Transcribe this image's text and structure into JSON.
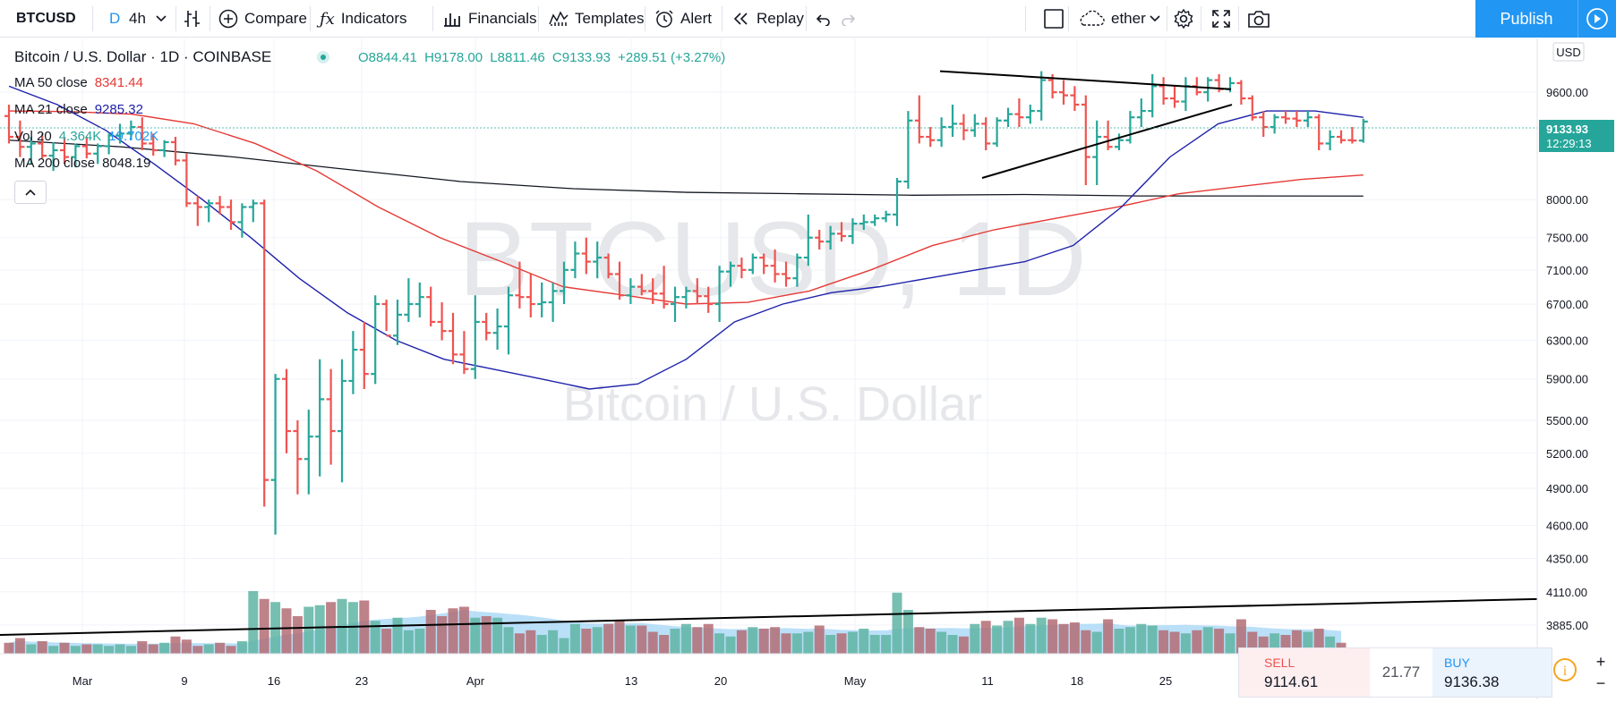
{
  "toolbar": {
    "symbol": "BTCUSD",
    "interval_d": "D",
    "interval_4h": "4h",
    "compare": "Compare",
    "indicators": "Indicators",
    "financials": "Financials",
    "templates": "Templates",
    "alert": "Alert",
    "replay": "Replay",
    "layout_name": "ether",
    "publish": "Publish"
  },
  "legend": {
    "title": "Bitcoin / U.S. Dollar · 1D · COINBASE",
    "open": "O8844.41",
    "high": "H9178.00",
    "low": "L8811.46",
    "close": "C9133.93",
    "change": "+289.51 (+3.27%)",
    "ma50_label": "MA 50 close",
    "ma50_value": "8341.44",
    "ma21_label": "MA 21 close",
    "ma21_value": "9285.32",
    "vol_label": "Vol 20",
    "vol_value1": "4.364K",
    "vol_value2": "19.702K",
    "ma200_label": "MA 200 close",
    "ma200_value": "8048.19"
  },
  "watermark": {
    "symbol": "BTCUSD, 1D",
    "name": "Bitcoin / U.S. Dollar"
  },
  "price_axis": {
    "currency": "USD",
    "ticks": [
      "9600.00",
      "8000.00",
      "7500.00",
      "7100.00",
      "6700.00",
      "6300.00",
      "5900.00",
      "5500.00",
      "5200.00",
      "4900.00",
      "4600.00",
      "4350.00",
      "4110.00",
      "3885.00"
    ],
    "last_price": "9133.93",
    "countdown": "12:29:13"
  },
  "time_axis": {
    "ticks": [
      "Mar",
      "9",
      "16",
      "23",
      "Apr",
      "13",
      "20",
      "May",
      "11",
      "18",
      "25"
    ]
  },
  "trade": {
    "sell_label": "SELL",
    "sell_value": "9114.61",
    "spread": "21.77",
    "buy_label": "BUY",
    "buy_value": "9136.38"
  },
  "colors": {
    "up": "#26a69a",
    "down": "#ef5350",
    "accent": "#2196f3",
    "ma50": "#e53935",
    "ma21": "#1e22aa",
    "ma200": "#131722"
  },
  "chart_data": {
    "type": "ohlc",
    "bars": [
      [
        9220,
        9400,
        8800,
        8900
      ],
      [
        8900,
        9150,
        8600,
        8750
      ],
      [
        8750,
        8900,
        8500,
        8800
      ],
      [
        8800,
        8950,
        8580,
        8620
      ],
      [
        8620,
        8820,
        8400,
        8700
      ],
      [
        8700,
        8880,
        8500,
        8600
      ],
      [
        8600,
        8800,
        8450,
        8760
      ],
      [
        8760,
        8900,
        8580,
        8650
      ],
      [
        8650,
        8800,
        8500,
        8760
      ],
      [
        8760,
        8950,
        8640,
        8920
      ],
      [
        8920,
        9100,
        8800,
        8950
      ],
      [
        8950,
        9150,
        8850,
        9050
      ],
      [
        9050,
        9200,
        8700,
        8800
      ],
      [
        8800,
        8950,
        8620,
        8700
      ],
      [
        8700,
        8850,
        8600,
        8820
      ],
      [
        8820,
        8900,
        8480,
        8550
      ],
      [
        8550,
        8650,
        7900,
        7950
      ],
      [
        7950,
        8050,
        7650,
        7900
      ],
      [
        7900,
        8000,
        7700,
        7950
      ],
      [
        7950,
        8050,
        7800,
        7900
      ],
      [
        7900,
        8000,
        7600,
        7700
      ],
      [
        7700,
        7950,
        7500,
        7900
      ],
      [
        7900,
        8000,
        7700,
        7950
      ],
      [
        7950,
        8000,
        4750,
        4970
      ],
      [
        4970,
        5950,
        4530,
        5900
      ],
      [
        5900,
        6000,
        5200,
        5400
      ],
      [
        5400,
        5500,
        4850,
        5150
      ],
      [
        5150,
        5600,
        4850,
        5350
      ],
      [
        5350,
        6100,
        5000,
        5700
      ],
      [
        5700,
        6000,
        5100,
        5400
      ],
      [
        5400,
        6100,
        4950,
        5880
      ],
      [
        5880,
        6400,
        5750,
        6200
      ],
      [
        6200,
        6500,
        5800,
        5950
      ],
      [
        5950,
        6800,
        5850,
        6700
      ],
      [
        6700,
        6750,
        6400,
        6350
      ],
      [
        6350,
        6750,
        6250,
        6580
      ],
      [
        6580,
        7000,
        6500,
        6700
      ],
      [
        6700,
        6950,
        6550,
        6780
      ],
      [
        6780,
        6900,
        6450,
        6500
      ],
      [
        6500,
        6720,
        6300,
        6400
      ],
      [
        6400,
        6600,
        6050,
        6150
      ],
      [
        6150,
        6400,
        5950,
        6000
      ],
      [
        6000,
        6800,
        5900,
        6500
      ],
      [
        6500,
        6600,
        6300,
        6380
      ],
      [
        6380,
        6650,
        6200,
        6450
      ],
      [
        6450,
        6900,
        6150,
        6800
      ],
      [
        6800,
        7200,
        6650,
        6780
      ],
      [
        6780,
        7050,
        6550,
        6700
      ],
      [
        6700,
        6950,
        6550,
        6720
      ],
      [
        6720,
        6950,
        6500,
        6850
      ],
      [
        6850,
        7200,
        6700,
        7100
      ],
      [
        7100,
        7450,
        7000,
        7300
      ],
      [
        7300,
        7500,
        7050,
        7200
      ],
      [
        7200,
        7450,
        7000,
        7250
      ],
      [
        7250,
        7300,
        7000,
        7050
      ],
      [
        7050,
        7200,
        6750,
        6800
      ],
      [
        6800,
        7000,
        6700,
        6900
      ],
      [
        6900,
        7050,
        6800,
        6850
      ],
      [
        6850,
        7000,
        6700,
        6820
      ],
      [
        6820,
        7150,
        6650,
        6700
      ],
      [
        6700,
        6900,
        6500,
        6780
      ],
      [
        6780,
        6900,
        6650,
        6850
      ],
      [
        6850,
        7000,
        6700,
        6790
      ],
      [
        6790,
        6900,
        6600,
        6700
      ],
      [
        6700,
        7150,
        6500,
        7080
      ],
      [
        7080,
        7200,
        6900,
        7150
      ],
      [
        7150,
        7250,
        7000,
        7100
      ],
      [
        7100,
        7300,
        7050,
        7250
      ],
      [
        7250,
        7300,
        7050,
        7150
      ],
      [
        7150,
        7350,
        6950,
        7050
      ],
      [
        7050,
        7200,
        6900,
        7000
      ],
      [
        7000,
        7300,
        6900,
        7250
      ],
      [
        7250,
        7800,
        7150,
        7500
      ],
      [
        7500,
        7600,
        7350,
        7450
      ],
      [
        7450,
        7650,
        7350,
        7550
      ],
      [
        7550,
        7700,
        7450,
        7520
      ],
      [
        7520,
        7750,
        7420,
        7680
      ],
      [
        7680,
        7800,
        7600,
        7700
      ],
      [
        7700,
        7800,
        7650,
        7750
      ],
      [
        7750,
        7850,
        7700,
        7800
      ],
      [
        7800,
        8300,
        7650,
        8250
      ],
      [
        8250,
        9300,
        8150,
        9150
      ],
      [
        9150,
        9550,
        8800,
        8900
      ],
      [
        8900,
        9050,
        8750,
        8850
      ],
      [
        8850,
        9200,
        8750,
        9050
      ],
      [
        9050,
        9400,
        8900,
        9100
      ],
      [
        9100,
        9250,
        8850,
        9000
      ],
      [
        9000,
        9250,
        8900,
        9100
      ],
      [
        9100,
        9200,
        8700,
        8800
      ],
      [
        8800,
        9200,
        8750,
        9150
      ],
      [
        9150,
        9350,
        9050,
        9250
      ],
      [
        9250,
        9500,
        9050,
        9200
      ],
      [
        9200,
        9400,
        9100,
        9300
      ],
      [
        9300,
        9950,
        9150,
        9800
      ],
      [
        9800,
        9900,
        9500,
        9600
      ],
      [
        9600,
        9800,
        9400,
        9550
      ],
      [
        9550,
        9700,
        9300,
        9400
      ],
      [
        9400,
        9550,
        8200,
        8600
      ],
      [
        8600,
        9150,
        8200,
        8900
      ],
      [
        8900,
        9150,
        8700,
        8750
      ],
      [
        8750,
        8950,
        8700,
        8850
      ],
      [
        8850,
        9300,
        8800,
        9200
      ],
      [
        9200,
        9500,
        9050,
        9300
      ],
      [
        9300,
        9900,
        9200,
        9700
      ],
      [
        9700,
        9850,
        9400,
        9500
      ],
      [
        9500,
        9700,
        9350,
        9450
      ],
      [
        9450,
        9850,
        9300,
        9700
      ],
      [
        9700,
        9850,
        9550,
        9600
      ],
      [
        9600,
        9850,
        9450,
        9800
      ],
      [
        9800,
        9900,
        9600,
        9650
      ],
      [
        9650,
        9850,
        9600,
        9750
      ],
      [
        9750,
        9800,
        9400,
        9500
      ],
      [
        9500,
        9550,
        9150,
        9200
      ],
      [
        9200,
        9300,
        8900,
        9050
      ],
      [
        9050,
        9250,
        8950,
        9200
      ],
      [
        9200,
        9300,
        9100,
        9180
      ],
      [
        9180,
        9300,
        9050,
        9150
      ],
      [
        9150,
        9300,
        9050,
        9200
      ],
      [
        9200,
        9250,
        8700,
        8800
      ],
      [
        8800,
        9000,
        8700,
        8900
      ],
      [
        8900,
        9000,
        8800,
        8850
      ],
      [
        8850,
        9050,
        8800,
        8844
      ],
      [
        8844,
        9178,
        8811,
        9134
      ]
    ],
    "volumes": [
      7,
      10,
      6,
      8,
      5,
      7,
      5,
      6,
      6,
      5,
      6,
      5,
      8,
      6,
      7,
      11,
      9,
      5,
      6,
      7,
      5,
      8,
      40,
      35,
      33,
      29,
      24,
      30,
      31,
      33,
      35,
      33,
      34,
      21,
      16,
      23,
      15,
      16,
      28,
      24,
      29,
      30,
      23,
      24,
      23,
      17,
      13,
      15,
      12,
      15,
      10,
      19,
      16,
      17,
      19,
      21,
      18,
      18,
      14,
      12,
      16,
      19,
      17,
      19,
      13,
      11,
      15,
      17,
      16,
      17,
      13,
      13,
      14,
      18,
      12,
      13,
      14,
      16,
      12,
      12,
      39,
      28,
      17,
      16,
      14,
      12,
      11,
      19,
      21,
      18,
      21,
      23,
      19,
      23,
      22,
      19,
      20,
      15,
      14,
      22,
      16,
      17,
      19,
      18,
      15,
      14,
      13,
      15,
      17,
      16,
      13,
      22,
      14,
      11,
      13,
      12,
      15,
      14,
      16,
      11,
      7
    ],
    "ma21": [
      9700,
      9400,
      9000,
      8500,
      8000,
      7500,
      7000,
      6600,
      6300,
      6100,
      6000,
      5900,
      5800,
      5850,
      6100,
      6500,
      6700,
      6830,
      6900,
      7000,
      7100,
      7200,
      7400,
      7900,
      8600,
      9100,
      9300,
      9300,
      9200
    ],
    "ma50": [
      9300,
      9290,
      9250,
      9100,
      8800,
      8400,
      7900,
      7500,
      7200,
      6900,
      6800,
      6700,
      6720,
      6850,
      7100,
      7400,
      7600,
      7750,
      7900,
      8080,
      8180,
      8280,
      8341
    ],
    "ma200": [
      8850,
      8750,
      8600,
      8420,
      8250,
      8150,
      8100,
      8080,
      8060,
      8070,
      8050,
      8050,
      8048
    ],
    "trendlines": [
      {
        "from": [
          "May 8",
          9950
        ],
        "to": [
          "May 29",
          9650
        ]
      },
      {
        "from": [
          "May 11",
          8300
        ],
        "to": [
          "May 29",
          9400
        ]
      },
      {
        "from": [
          "Feb 25",
          3820
        ],
        "to": [
          "Jun 10",
          4060
        ]
      }
    ],
    "ylim": [
      3700,
      10050
    ],
    "log_scale": true
  }
}
